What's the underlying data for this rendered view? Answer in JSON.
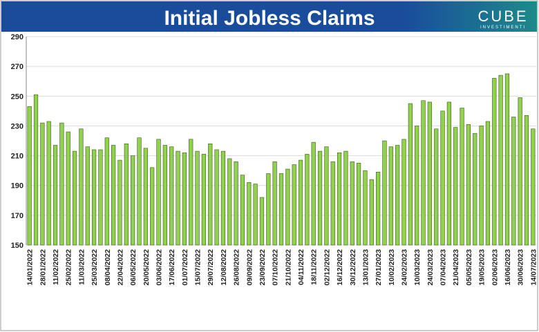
{
  "brand": "CUBE",
  "brand_sub": "INVESTIMENTI",
  "chart_data": {
    "type": "bar",
    "title": "Initial Jobless Claims",
    "color": "#92d050",
    "grid": true,
    "categories": [
      "14/01/2022",
      null,
      "28/01/2022",
      null,
      "11/02/2022",
      null,
      "25/02/2022",
      null,
      "11/03/2022",
      null,
      "25/03/2022",
      null,
      "08/04/2022",
      null,
      "22/04/2022",
      null,
      "06/05/2022",
      null,
      "20/05/2022",
      null,
      "03/06/2022",
      null,
      "17/06/2022",
      null,
      "01/07/2022",
      null,
      "15/07/2022",
      null,
      "29/07/2022",
      null,
      "12/08/2022",
      null,
      "26/08/2022",
      null,
      "09/09/2022",
      null,
      "23/09/2022",
      null,
      "07/10/2022",
      null,
      "21/10/2022",
      null,
      "04/11/2022",
      null,
      "18/11/2022",
      null,
      "02/12/2022",
      null,
      "16/12/2022",
      null,
      "30/12/2022",
      null,
      "13/01/2023",
      null,
      "27/01/2023",
      null,
      "10/02/2023",
      null,
      "24/02/2023",
      null,
      "10/03/2023",
      null,
      "24/03/2023",
      null,
      "07/04/2023",
      null,
      "21/04/2023",
      null,
      "05/05/2023",
      null,
      "19/05/2023",
      null,
      "02/06/2023",
      null,
      "16/06/2023",
      null,
      "30/06/2023",
      null,
      "14/07/2023"
    ],
    "values": [
      243,
      251,
      232,
      233,
      217,
      232,
      226,
      213,
      228,
      216,
      214,
      214,
      222,
      217,
      207,
      218,
      210,
      222,
      215,
      202,
      221,
      217,
      216,
      213,
      212,
      221,
      213,
      211,
      218,
      214,
      213,
      208,
      206,
      197,
      192,
      191,
      182,
      198,
      206,
      198,
      201,
      204,
      207,
      211,
      219,
      213,
      216,
      206,
      212,
      213,
      206,
      205,
      200,
      194,
      199,
      220,
      216,
      217,
      221,
      245,
      230,
      247,
      246,
      228,
      240,
      246,
      229,
      242,
      231,
      225,
      230,
      233,
      262,
      264,
      265,
      236,
      249,
      237,
      228
    ],
    "ylim": [
      150,
      290
    ],
    "yticks": [
      150,
      170,
      190,
      210,
      230,
      250,
      270,
      290
    ]
  }
}
